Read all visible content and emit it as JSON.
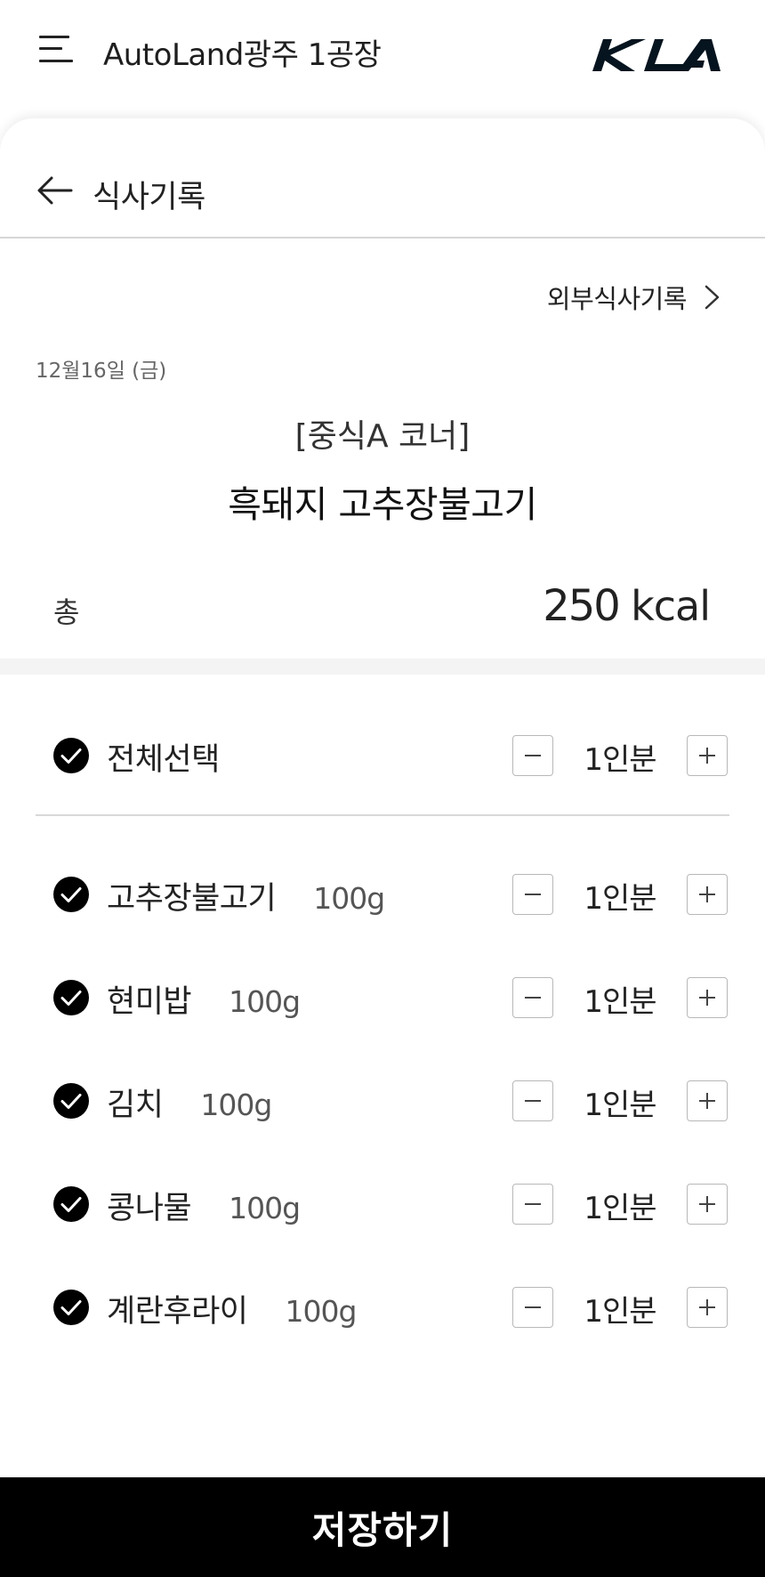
{
  "header": {
    "title": "AutoLand광주 1공장",
    "menu_icon": "hamburger-menu-icon",
    "logo": "KIA"
  },
  "subheader": {
    "back_icon": "arrow-left-icon",
    "title": "식사기록"
  },
  "external_link": {
    "label": "외부식사기록",
    "icon": "chevron-right-icon"
  },
  "meal": {
    "date": "12월16일 (금)",
    "corner": "[중식A 코너]",
    "name": "흑돼지 고추장불고기"
  },
  "total": {
    "label": "총",
    "value": "250",
    "unit": "kcal"
  },
  "select_all": {
    "label": "전체선택",
    "checked": true,
    "qty": "1인분"
  },
  "items": [
    {
      "name": "고추장불고기",
      "weight": "100g",
      "qty": "1인분",
      "checked": true
    },
    {
      "name": "현미밥",
      "weight": "100g",
      "qty": "1인분",
      "checked": true
    },
    {
      "name": "김치",
      "weight": "100g",
      "qty": "1인분",
      "checked": true
    },
    {
      "name": "콩나물",
      "weight": "100g",
      "qty": "1인분",
      "checked": true
    },
    {
      "name": "계란후라이",
      "weight": "100g",
      "qty": "1인분",
      "checked": true
    }
  ],
  "save_button": {
    "label": "저장하기"
  },
  "colors": {
    "brand": "#05141F",
    "check": "#000000",
    "button_bg": "#000000",
    "button_text": "#FFFFFF"
  }
}
